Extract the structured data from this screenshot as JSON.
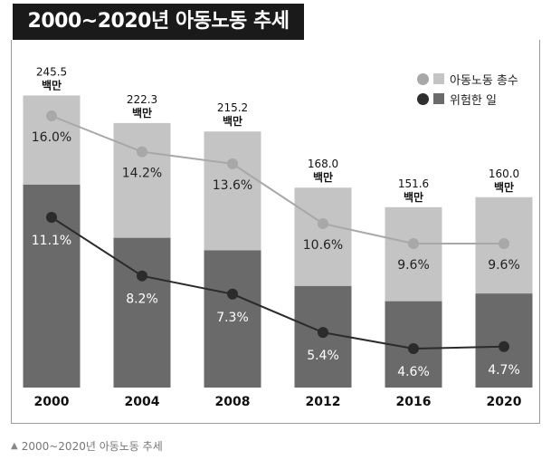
{
  "title": "2000~2020년 아동노동 추세",
  "caption": "2000~2020년 아동노동 추세",
  "legend": [
    {
      "label": "아동노동 총수",
      "dot_color": "#a8a8a8",
      "bar_color": "#c4c4c4"
    },
    {
      "label": "위험한 일",
      "dot_color": "#2e2e2e",
      "bar_color": "#6a6a6a"
    }
  ],
  "chart_data": {
    "type": "bar",
    "categories": [
      "2000",
      "2004",
      "2008",
      "2012",
      "2016",
      "2020"
    ],
    "series": [
      {
        "name": "아동노동 총수",
        "values": [
          245.5,
          222.3,
          215.2,
          168.0,
          151.6,
          160.0
        ],
        "value_labels": [
          "245.5",
          "222.3",
          "215.2",
          "168.0",
          "151.6",
          "160.0"
        ],
        "unit_label": "백만",
        "percent_labels": [
          "16.0%",
          "14.2%",
          "13.6%",
          "10.6%",
          "9.6%",
          "9.6%"
        ],
        "percent_values": [
          16.0,
          14.2,
          13.6,
          10.6,
          9.6,
          9.6
        ]
      },
      {
        "name": "위험한 일",
        "values": [
          170.5,
          125.8,
          115.3,
          85.3,
          72.5,
          79.0
        ],
        "percent_labels": [
          "11.1%",
          "8.2%",
          "7.3%",
          "5.4%",
          "4.6%",
          "4.7%"
        ],
        "percent_values": [
          11.1,
          8.2,
          7.3,
          5.4,
          4.6,
          4.7
        ]
      }
    ],
    "ylim": [
      0,
      260
    ],
    "colors": {
      "total_bar": "#c4c4c4",
      "hazard_bar": "#6a6a6a",
      "total_line": "#a8a8a8",
      "hazard_line": "#2b2b2b"
    }
  }
}
